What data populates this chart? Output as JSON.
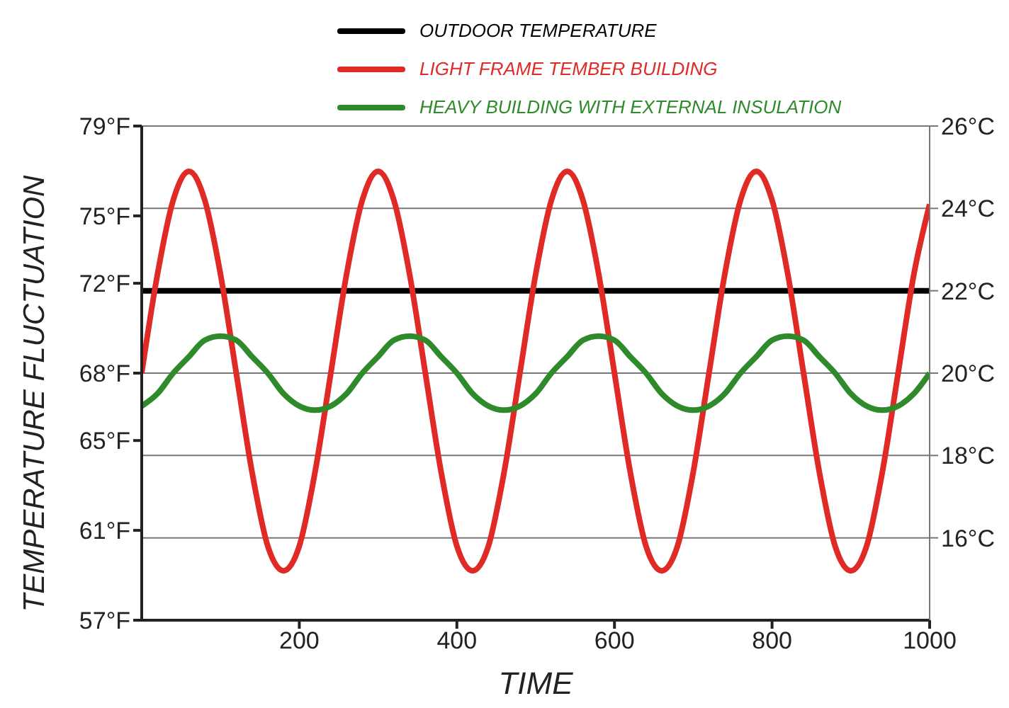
{
  "chart_data": {
    "type": "line",
    "xlabel": "TIME",
    "y2label": "TEMPERATURE FLUCTUATION",
    "x": [
      0,
      20,
      40,
      60,
      80,
      100,
      120,
      140,
      160,
      180,
      200,
      220,
      240,
      260,
      280,
      300,
      320,
      340,
      360,
      380,
      400,
      420,
      440,
      460,
      480,
      500,
      520,
      540,
      560,
      580,
      600,
      620,
      640,
      660,
      680,
      700,
      720,
      740,
      760,
      780,
      800,
      820,
      840,
      860,
      880,
      900,
      920,
      940,
      960,
      980,
      1000
    ],
    "series": [
      {
        "name": "OUTDOOR TEMPERATURE",
        "color": "#000000",
        "values": [
          22,
          22,
          22,
          22,
          22,
          22,
          22,
          22,
          22,
          22,
          22,
          22,
          22,
          22,
          22,
          22,
          22,
          22,
          22,
          22,
          22,
          22,
          22,
          22,
          22,
          22,
          22,
          22,
          22,
          22,
          22,
          22,
          22,
          22,
          22,
          22,
          22,
          22,
          22,
          22,
          22,
          22,
          22,
          22,
          22,
          22,
          22,
          22,
          22,
          22,
          22
        ]
      },
      {
        "name": "LIGHT FRAME TEMBER BUILDING",
        "color": "#e02a26",
        "values": [
          20,
          22.4,
          24.2,
          24.9,
          24.2,
          22.4,
          20,
          17.6,
          15.8,
          15.2,
          15.8,
          17.6,
          20,
          22.4,
          24.2,
          24.9,
          24.2,
          22.4,
          20,
          17.6,
          15.8,
          15.2,
          15.8,
          17.6,
          20,
          22.4,
          24.2,
          24.9,
          24.2,
          22.4,
          20,
          17.6,
          15.8,
          15.2,
          15.8,
          17.6,
          20,
          22.4,
          24.2,
          24.9,
          24.2,
          22.4,
          20,
          17.6,
          15.8,
          15.2,
          15.8,
          17.6,
          20,
          22.4,
          24.1
        ]
      },
      {
        "name": "HEAVY BUILDING WITH EXTERNAL INSULATION",
        "color": "#2e8a2a",
        "values": [
          19.2,
          19.5,
          20.0,
          20.4,
          20.8,
          20.9,
          20.8,
          20.4,
          20.0,
          19.5,
          19.2,
          19.1,
          19.2,
          19.5,
          20.0,
          20.4,
          20.8,
          20.9,
          20.8,
          20.4,
          20.0,
          19.5,
          19.2,
          19.1,
          19.2,
          19.5,
          20.0,
          20.4,
          20.8,
          20.9,
          20.8,
          20.4,
          20.0,
          19.5,
          19.2,
          19.1,
          19.2,
          19.5,
          20.0,
          20.4,
          20.8,
          20.9,
          20.8,
          20.4,
          20.0,
          19.5,
          19.2,
          19.1,
          19.2,
          19.5,
          20.0
        ]
      }
    ],
    "xlim": [
      0,
      1000
    ],
    "xticks": [
      200,
      400,
      600,
      800,
      1000
    ],
    "ylim": [
      14,
      26
    ],
    "yticks": [
      {
        "value": 16,
        "label": "16°C"
      },
      {
        "value": 18,
        "label": "18°C"
      },
      {
        "value": 20,
        "label": "20°C"
      },
      {
        "value": 22,
        "label": "22°C"
      },
      {
        "value": 24,
        "label": "24°C"
      },
      {
        "value": 26,
        "label": "26°C"
      }
    ],
    "y2lim": [
      57,
      79
    ],
    "y2ticks": [
      {
        "value": 57,
        "label": "57°F"
      },
      {
        "value": 61,
        "label": "61°F"
      },
      {
        "value": 65,
        "label": "65°F"
      },
      {
        "value": 68,
        "label": "68°F"
      },
      {
        "value": 72,
        "label": "72°F"
      },
      {
        "value": 75,
        "label": "75°F"
      },
      {
        "value": 79,
        "label": "79°F"
      }
    ],
    "grid": "y",
    "legend": "top",
    "marker": "none"
  }
}
